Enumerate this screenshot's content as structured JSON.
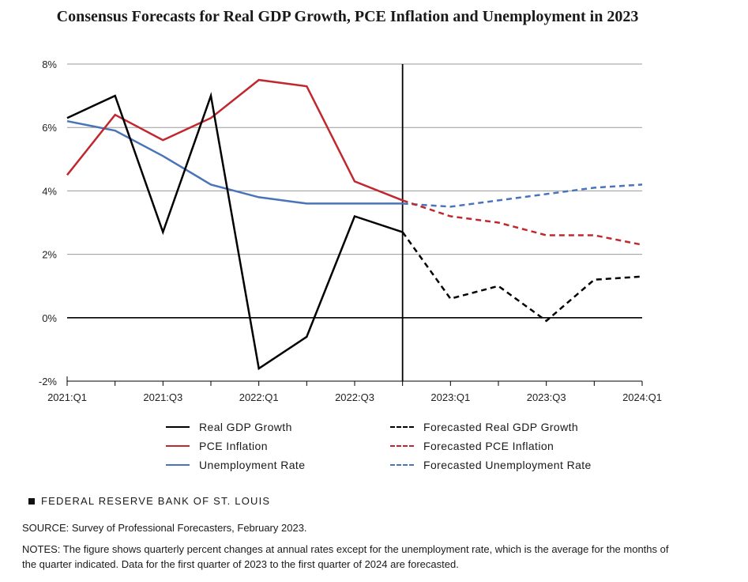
{
  "title": "Consensus Forecasts for Real GDP Growth, PCE Inflation and Unemployment in 2023",
  "chart_data": {
    "type": "line",
    "x": [
      "2021:Q1",
      "2021:Q2",
      "2021:Q3",
      "2021:Q4",
      "2022:Q1",
      "2022:Q2",
      "2022:Q3",
      "2022:Q4",
      "2023:Q1",
      "2023:Q2",
      "2023:Q3",
      "2023:Q4",
      "2024:Q1"
    ],
    "x_tick_labels": [
      "2021:Q1",
      "2021:Q3",
      "2022:Q1",
      "2022:Q3",
      "2023:Q1",
      "2023:Q3",
      "2024:Q1"
    ],
    "y_tick_labels": [
      "8%",
      "6%",
      "4%",
      "2%",
      "0%",
      "-2%"
    ],
    "y_ticks": [
      8,
      6,
      4,
      2,
      0,
      -2
    ],
    "ylim": [
      -2,
      8
    ],
    "forecast_start": "2022:Q4",
    "series": [
      {
        "name": "Real GDP Growth",
        "color": "#000000",
        "style": "solid",
        "x": [
          "2021:Q1",
          "2021:Q2",
          "2021:Q3",
          "2021:Q4",
          "2022:Q1",
          "2022:Q2",
          "2022:Q3",
          "2022:Q4"
        ],
        "values": [
          6.3,
          7.0,
          2.7,
          7.0,
          -1.6,
          -0.6,
          3.2,
          2.7
        ]
      },
      {
        "name": "PCE Inflation",
        "color": "#c0282e",
        "style": "solid",
        "x": [
          "2021:Q1",
          "2021:Q2",
          "2021:Q3",
          "2021:Q4",
          "2022:Q1",
          "2022:Q2",
          "2022:Q3",
          "2022:Q4"
        ],
        "values": [
          4.5,
          6.4,
          5.6,
          6.3,
          7.5,
          7.3,
          4.3,
          3.7
        ]
      },
      {
        "name": "Unemployment Rate",
        "color": "#4a74b8",
        "style": "solid",
        "x": [
          "2021:Q1",
          "2021:Q2",
          "2021:Q3",
          "2021:Q4",
          "2022:Q1",
          "2022:Q2",
          "2022:Q3",
          "2022:Q4"
        ],
        "values": [
          6.2,
          5.9,
          5.1,
          4.2,
          3.8,
          3.6,
          3.6,
          3.6
        ]
      },
      {
        "name": "Forecasted Real GDP Growth",
        "color": "#000000",
        "style": "dashed",
        "x": [
          "2022:Q4",
          "2023:Q1",
          "2023:Q2",
          "2023:Q3",
          "2023:Q4",
          "2024:Q1"
        ],
        "values": [
          2.7,
          0.6,
          1.0,
          -0.1,
          1.2,
          1.3
        ]
      },
      {
        "name": "Forecasted PCE Inflation",
        "color": "#c0282e",
        "style": "dashed",
        "x": [
          "2022:Q4",
          "2023:Q1",
          "2023:Q2",
          "2023:Q3",
          "2023:Q4",
          "2024:Q1"
        ],
        "values": [
          3.7,
          3.2,
          3.0,
          2.6,
          2.6,
          2.3
        ]
      },
      {
        "name": "Forecasted Unemployment Rate",
        "color": "#4a74b8",
        "style": "dashed",
        "x": [
          "2022:Q4",
          "2023:Q1",
          "2023:Q2",
          "2023:Q3",
          "2023:Q4",
          "2024:Q1"
        ],
        "values": [
          3.6,
          3.5,
          3.7,
          3.9,
          4.1,
          4.2
        ]
      }
    ],
    "grid": true,
    "legend_position": "bottom"
  },
  "legend": {
    "left": [
      {
        "label": "Real GDP Growth",
        "color": "#000000",
        "style": "solid"
      },
      {
        "label": "PCE Inflation",
        "color": "#c0282e",
        "style": "solid"
      },
      {
        "label": "Unemployment Rate",
        "color": "#4a74b8",
        "style": "solid"
      }
    ],
    "right": [
      {
        "label": "Forecasted Real GDP Growth",
        "color": "#000000",
        "style": "dashed"
      },
      {
        "label": "Forecasted PCE Inflation",
        "color": "#c0282e",
        "style": "dashed"
      },
      {
        "label": "Forecasted Unemployment Rate",
        "color": "#4a74b8",
        "style": "dashed"
      }
    ]
  },
  "source_logo": "FEDERAL RESERVE BANK OF ST. LOUIS",
  "source": "SOURCE: Survey of Professional Forecasters, February 2023.",
  "notes": "NOTES: The figure shows quarterly percent changes at annual rates except for the unemployment rate, which is the average for the months of the quarter indicated. Data for the first quarter of 2023 to the first quarter of 2024 are forecasted."
}
